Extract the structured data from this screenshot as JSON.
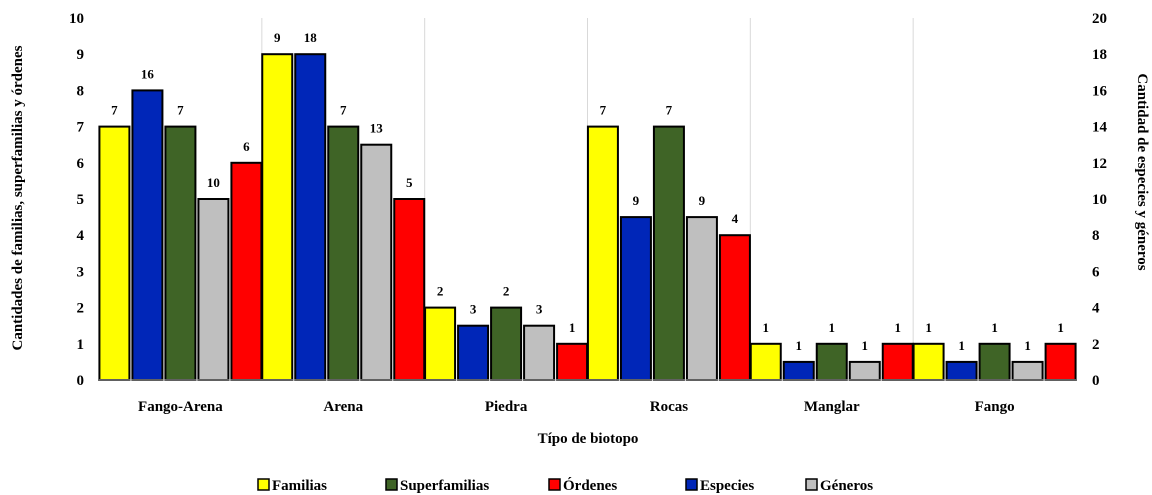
{
  "chart_data": {
    "type": "bar",
    "xlabel": "Típo de biotopo",
    "ylabel_left": "Cantidades de familias, superfamilias y órdenes",
    "ylabel_right": "Cantidad de especies y géneros",
    "ylim_left": [
      0,
      10
    ],
    "ylim_right": [
      0,
      20
    ],
    "yticks_left": [
      0,
      1,
      2,
      3,
      4,
      5,
      6,
      7,
      8,
      9,
      10
    ],
    "yticks_right": [
      0,
      2,
      4,
      6,
      8,
      10,
      12,
      14,
      16,
      18,
      20
    ],
    "grid": "vertical separators between categories",
    "legend_position": "bottom",
    "categories": [
      "Fango-Arena",
      "Arena",
      "Piedra",
      "Rocas",
      "Manglar",
      "Fango"
    ],
    "series": [
      {
        "name": "Familias",
        "axis": "left",
        "color": "#FFFF00",
        "values": [
          7,
          9,
          2,
          7,
          1,
          1
        ]
      },
      {
        "name": "Especies",
        "axis": "right",
        "color": "#0026B8",
        "values": [
          16,
          18,
          3,
          9,
          1,
          1
        ]
      },
      {
        "name": "Superfamilias",
        "axis": "left",
        "color": "#3F6426",
        "values": [
          7,
          7,
          2,
          7,
          1,
          1
        ]
      },
      {
        "name": "Géneros",
        "axis": "right",
        "color": "#BFBFBF",
        "values": [
          10,
          13,
          3,
          9,
          1,
          1
        ]
      },
      {
        "name": "Órdenes",
        "axis": "left",
        "color": "#FF0000",
        "values": [
          6,
          5,
          1,
          4,
          1,
          1
        ]
      }
    ],
    "legend_order": [
      "Familias",
      "Superfamilias",
      "Órdenes",
      "Especies",
      "Géneros"
    ]
  }
}
